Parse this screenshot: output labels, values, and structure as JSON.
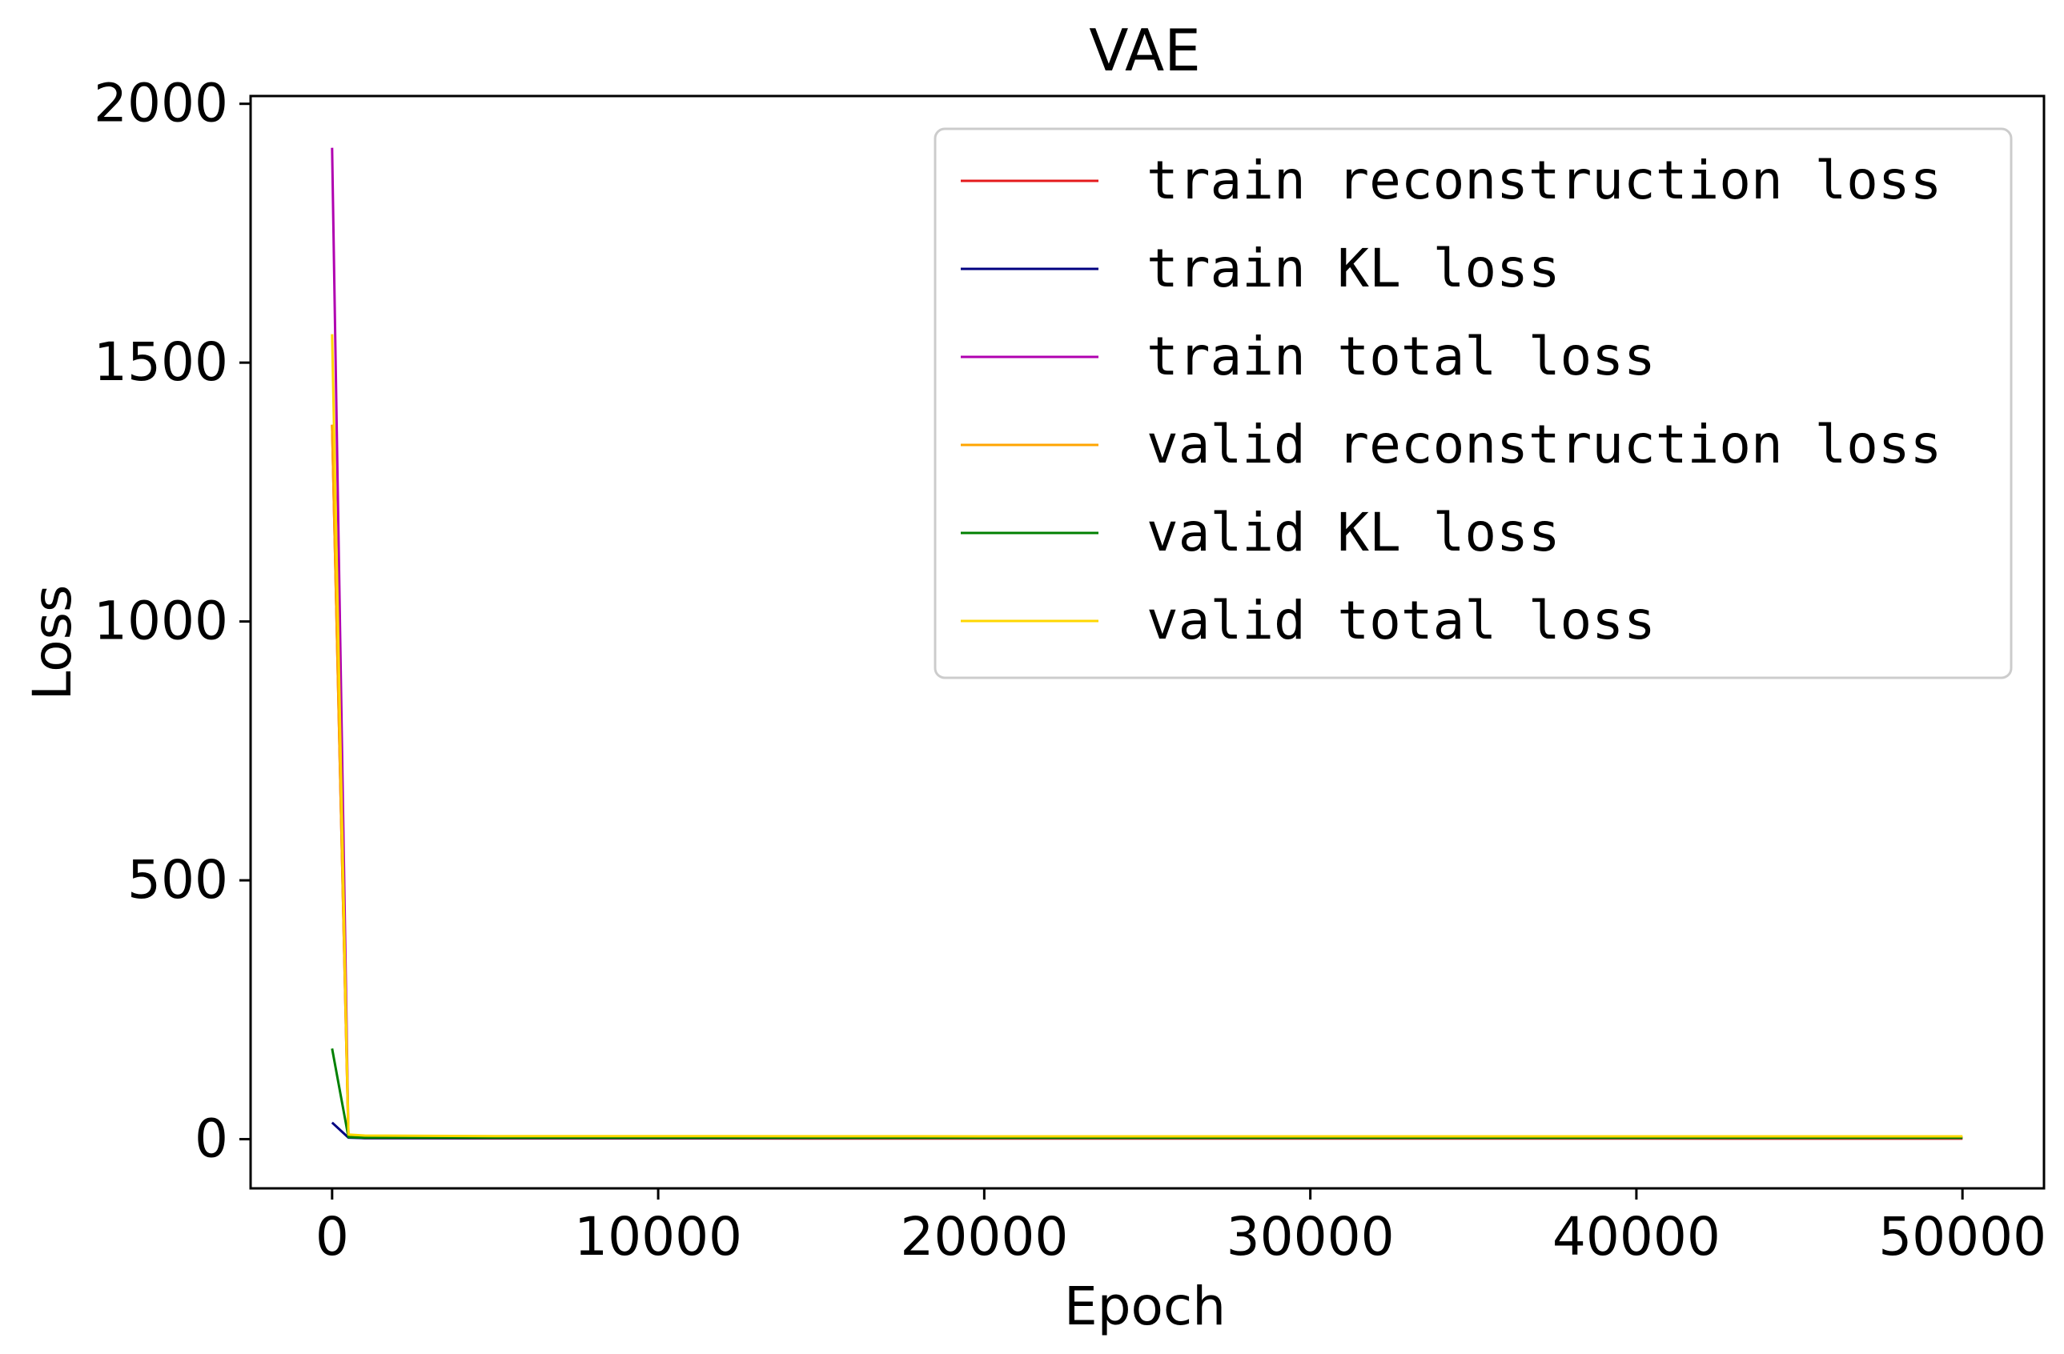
{
  "chart_data": {
    "type": "line",
    "title": "VAE",
    "xlabel": "Epoch",
    "ylabel": "Loss",
    "xlim": [
      -2500,
      52500
    ],
    "ylim": [
      -95,
      2015
    ],
    "xticks": [
      0,
      10000,
      20000,
      30000,
      40000,
      50000
    ],
    "yticks": [
      0,
      500,
      1000,
      1500,
      2000
    ],
    "grid": false,
    "legend_position": "top-right",
    "series": [
      {
        "name": "train reconstruction loss",
        "color": "#e41a1c",
        "x": [
          0,
          500,
          1000,
          5000,
          10000,
          20000,
          30000,
          40000,
          50000
        ],
        "y": [
          1380,
          4,
          2,
          1.5,
          1.5,
          1.2,
          1.2,
          1.1,
          1.0
        ]
      },
      {
        "name": "train KL loss",
        "color": "#000080",
        "x": [
          0,
          500,
          1000,
          5000,
          10000,
          20000,
          30000,
          40000,
          50000
        ],
        "y": [
          32,
          3,
          2,
          2,
          2,
          2,
          2,
          2,
          2
        ]
      },
      {
        "name": "train total loss",
        "color": "#b000b0",
        "x": [
          0,
          500,
          1000,
          5000,
          10000,
          20000,
          30000,
          40000,
          50000
        ],
        "y": [
          1915,
          6,
          4,
          3.5,
          3.5,
          3.2,
          3.2,
          3.1,
          3.0
        ]
      },
      {
        "name": "valid reconstruction loss",
        "color": "#ffa500",
        "x": [
          0,
          500,
          1000,
          5000,
          10000,
          20000,
          30000,
          40000,
          50000
        ],
        "y": [
          1380,
          5,
          4,
          3,
          3,
          2.5,
          2.5,
          2.5,
          2.5
        ]
      },
      {
        "name": "valid KL loss",
        "color": "#008000",
        "x": [
          0,
          500,
          1000,
          5000,
          10000,
          20000,
          30000,
          40000,
          50000
        ],
        "y": [
          175,
          4,
          3,
          3,
          3,
          3,
          3,
          3,
          3
        ]
      },
      {
        "name": "valid total loss",
        "color": "#ffd700",
        "x": [
          0,
          500,
          1000,
          5000,
          10000,
          20000,
          30000,
          40000,
          50000
        ],
        "y": [
          1555,
          9,
          7,
          6,
          6,
          5.5,
          5.5,
          5.5,
          5.5
        ]
      }
    ]
  }
}
